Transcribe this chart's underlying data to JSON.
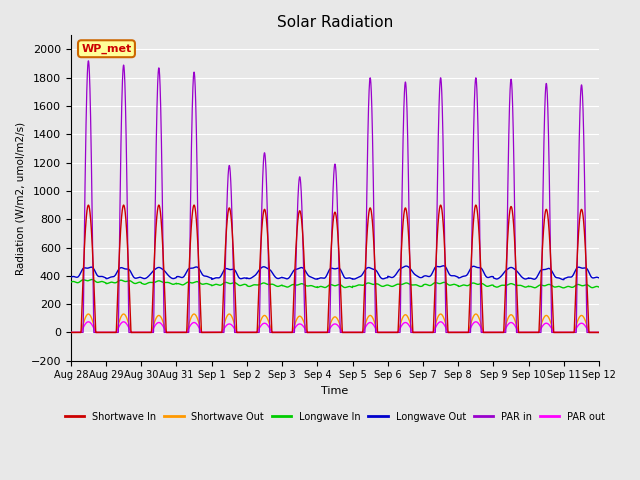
{
  "title": "Solar Radiation",
  "ylabel": "Radiation (W/m2, umol/m2/s)",
  "xlabel": "Time",
  "ylim": [
    -200,
    2100
  ],
  "yticks": [
    -200,
    0,
    200,
    400,
    600,
    800,
    1000,
    1200,
    1400,
    1600,
    1800,
    2000
  ],
  "bg_color": "#e8e8e8",
  "legend_entries": [
    {
      "label": "Shortwave In",
      "color": "#cc0000"
    },
    {
      "label": "Shortwave Out",
      "color": "#ff9900"
    },
    {
      "label": "Longwave In",
      "color": "#00cc00"
    },
    {
      "label": "Longwave Out",
      "color": "#0000cc"
    },
    {
      "label": "PAR in",
      "color": "#9900cc"
    },
    {
      "label": "PAR out",
      "color": "#ff00ff"
    }
  ],
  "annotation_box": {
    "text": "WP_met",
    "facecolor": "#ffff99",
    "edgecolor": "#cc6600",
    "textcolor": "#cc0000"
  },
  "n_days": 15,
  "day_names": [
    "Aug 28",
    "Aug 29",
    "Aug 30",
    "Aug 31",
    "Sep 1",
    "Sep 2",
    "Sep 3",
    "Sep 4",
    "Sep 5",
    "Sep 6",
    "Sep 7",
    "Sep 8",
    "Sep 9",
    "Sep 10",
    "Sep 11",
    "Sep 12"
  ],
  "shortwave_in_peaks": [
    900,
    900,
    900,
    900,
    880,
    870,
    860,
    850,
    880,
    880,
    900,
    900,
    890,
    870,
    870
  ],
  "shortwave_out_peaks": [
    130,
    130,
    120,
    130,
    130,
    120,
    115,
    110,
    120,
    125,
    130,
    130,
    125,
    120,
    120
  ],
  "par_in_peaks": [
    1920,
    1890,
    1870,
    1840,
    1180,
    1270,
    1100,
    1190,
    1800,
    1770,
    1800,
    1800,
    1790,
    1760,
    1750
  ],
  "par_out_peaks": [
    75,
    75,
    70,
    70,
    60,
    65,
    60,
    60,
    70,
    70,
    75,
    75,
    70,
    65,
    65
  ],
  "longwave_in_day_vals": [
    370,
    365,
    360,
    355,
    350,
    345,
    340,
    335,
    345,
    345,
    350,
    345,
    340,
    335,
    335
  ],
  "longwave_in_night_vals": [
    355,
    350,
    345,
    340,
    335,
    330,
    325,
    320,
    330,
    330,
    335,
    330,
    325,
    320,
    320
  ],
  "longwave_out_day_vals": [
    460,
    455,
    455,
    460,
    450,
    460,
    455,
    455,
    455,
    465,
    470,
    465,
    455,
    450,
    460
  ],
  "longwave_out_night_vals": [
    390,
    385,
    385,
    390,
    380,
    385,
    382,
    380,
    382,
    392,
    395,
    390,
    382,
    378,
    385
  ]
}
